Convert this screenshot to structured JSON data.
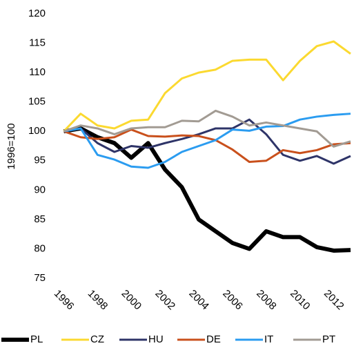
{
  "chart_data": {
    "type": "line",
    "y_label": "1996=100",
    "x": [
      1996,
      1997,
      1998,
      1999,
      2000,
      2001,
      2002,
      2003,
      2004,
      2005,
      2006,
      2007,
      2008,
      2009,
      2010,
      2011,
      2012,
      2013
    ],
    "xlim": [
      1995,
      2013
    ],
    "xticks": [
      1996,
      1998,
      2000,
      2002,
      2004,
      2006,
      2008,
      2010,
      2012
    ],
    "ylim": [
      75,
      120
    ],
    "yticks": [
      75,
      80,
      85,
      90,
      95,
      100,
      105,
      110,
      115,
      120
    ],
    "legend": "bottom",
    "series": [
      {
        "name": "PL",
        "color": "#000000",
        "values": [
          100,
          100.5,
          99,
          98,
          95.5,
          98,
          93.5,
          90.5,
          85,
          83,
          81,
          80,
          83,
          82,
          82,
          80.3,
          79.7,
          79.8
        ]
      },
      {
        "name": "CZ",
        "color": "#fbd930",
        "values": [
          100,
          103,
          101,
          100.5,
          101.8,
          102,
          106.5,
          109,
          110,
          110.5,
          112,
          112.2,
          112.2,
          108.7,
          112,
          114.5,
          115.3,
          113.2
        ]
      },
      {
        "name": "HU",
        "color": "#2e3468",
        "values": [
          100,
          100.5,
          98,
          96.5,
          97.5,
          97.2,
          98,
          98.7,
          99.5,
          100.5,
          100.5,
          102,
          99.5,
          96,
          95,
          95.8,
          94.5,
          95.8
        ]
      },
      {
        "name": "DE",
        "color": "#c9501c",
        "values": [
          100,
          99,
          98.7,
          99,
          100.3,
          99.2,
          99.1,
          99.3,
          99.2,
          98.5,
          96.9,
          94.8,
          95,
          96.8,
          96.3,
          96.8,
          97.8,
          98
        ]
      },
      {
        "name": "IT",
        "color": "#2b9cf0",
        "values": [
          100,
          100.5,
          96,
          95.2,
          94,
          93.8,
          94.8,
          96.5,
          97.5,
          98.5,
          100.3,
          100.1,
          100.8,
          100.9,
          102,
          102.5,
          102.8,
          103
        ]
      },
      {
        "name": "PT",
        "color": "#a29b93",
        "values": [
          100,
          101,
          100.5,
          99.5,
          100.5,
          100.7,
          100.7,
          101.8,
          101.7,
          103.5,
          102.5,
          101,
          101.5,
          101,
          100.5,
          100,
          97.4,
          98.3
        ]
      }
    ]
  }
}
